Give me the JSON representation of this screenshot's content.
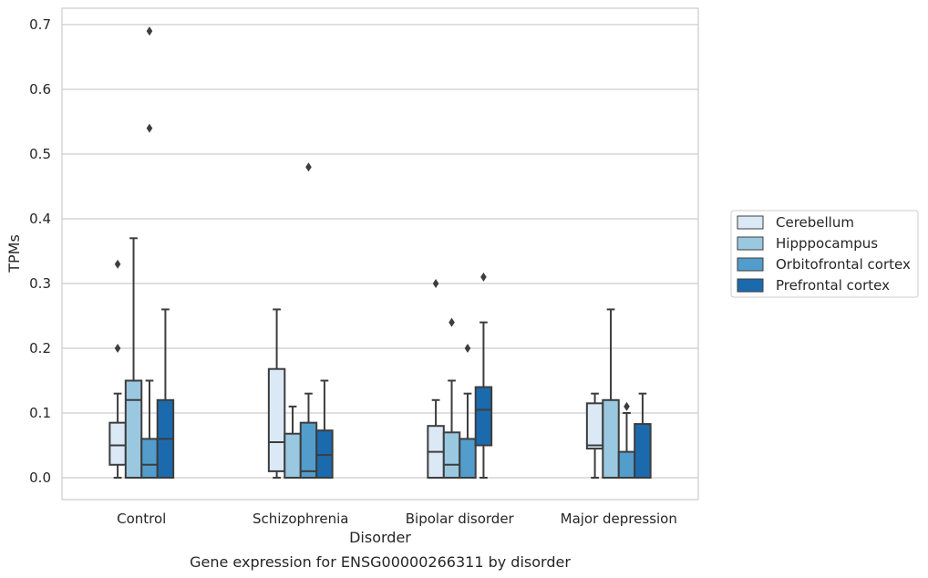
{
  "chart_data": {
    "type": "box",
    "title": "",
    "xlabel": "Disorder",
    "ylabel": "TPMs",
    "caption": "Gene expression for ENSG00000266311 by disorder",
    "ylim": [
      -0.034,
      0.726
    ],
    "yticks": [
      "0.0",
      "0.1",
      "0.2",
      "0.3",
      "0.4",
      "0.5",
      "0.6",
      "0.7"
    ],
    "categories": [
      "Control",
      "Schizophrenia",
      "Bipolar disorder",
      "Major depression"
    ],
    "grid": "horizontal",
    "legend_position": "right",
    "series": [
      {
        "name": "Cerebellum",
        "color": "#dbe9f6",
        "boxes": [
          {
            "whislo": 0.0,
            "q1": 0.02,
            "med": 0.05,
            "q3": 0.085,
            "whishi": 0.13,
            "fliers": [
              0.2,
              0.33
            ]
          },
          {
            "whislo": 0.0,
            "q1": 0.01,
            "med": 0.055,
            "q3": 0.168,
            "whishi": 0.26,
            "fliers": []
          },
          {
            "whislo": 0.0,
            "q1": 0.0,
            "med": 0.04,
            "q3": 0.08,
            "whishi": 0.12,
            "fliers": [
              0.3
            ]
          },
          {
            "whislo": 0.0,
            "q1": 0.045,
            "med": 0.05,
            "q3": 0.115,
            "whishi": 0.13,
            "fliers": []
          }
        ]
      },
      {
        "name": "Hipppocampus",
        "color": "#9ac8e0",
        "boxes": [
          {
            "whislo": 0.0,
            "q1": 0.0,
            "med": 0.12,
            "q3": 0.15,
            "whishi": 0.37,
            "fliers": []
          },
          {
            "whislo": 0.0,
            "q1": 0.0,
            "med": 0.0,
            "q3": 0.068,
            "whishi": 0.11,
            "fliers": []
          },
          {
            "whislo": 0.0,
            "q1": 0.0,
            "med": 0.02,
            "q3": 0.07,
            "whishi": 0.15,
            "fliers": [
              0.24
            ]
          },
          {
            "whislo": 0.0,
            "q1": 0.0,
            "med": 0.0,
            "q3": 0.12,
            "whishi": 0.26,
            "fliers": []
          }
        ]
      },
      {
        "name": "Orbitofrontal cortex",
        "color": "#529dcc",
        "boxes": [
          {
            "whislo": 0.0,
            "q1": 0.0,
            "med": 0.02,
            "q3": 0.06,
            "whishi": 0.15,
            "fliers": [
              0.54,
              0.69
            ]
          },
          {
            "whislo": 0.0,
            "q1": 0.0,
            "med": 0.01,
            "q3": 0.085,
            "whishi": 0.13,
            "fliers": [
              0.48
            ]
          },
          {
            "whislo": 0.0,
            "q1": 0.0,
            "med": 0.0,
            "q3": 0.06,
            "whishi": 0.13,
            "fliers": [
              0.2
            ]
          },
          {
            "whislo": 0.0,
            "q1": 0.0,
            "med": 0.0,
            "q3": 0.04,
            "whishi": 0.1,
            "fliers": [
              0.11
            ]
          }
        ]
      },
      {
        "name": "Prefrontal cortex",
        "color": "#1c6aae",
        "boxes": [
          {
            "whislo": 0.0,
            "q1": 0.0,
            "med": 0.06,
            "q3": 0.12,
            "whishi": 0.26,
            "fliers": []
          },
          {
            "whislo": 0.0,
            "q1": 0.0,
            "med": 0.035,
            "q3": 0.073,
            "whishi": 0.15,
            "fliers": []
          },
          {
            "whislo": 0.0,
            "q1": 0.05,
            "med": 0.105,
            "q3": 0.14,
            "whishi": 0.24,
            "fliers": [
              0.31
            ]
          },
          {
            "whislo": 0.0,
            "q1": 0.0,
            "med": 0.0,
            "q3": 0.083,
            "whishi": 0.13,
            "fliers": []
          }
        ]
      }
    ]
  }
}
